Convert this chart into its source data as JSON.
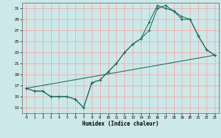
{
  "xlabel": "Humidex (Indice chaleur)",
  "bg_color": "#cce8e8",
  "grid_color": "#ff9999",
  "line_color": "#1a6b5a",
  "xlim": [
    -0.5,
    23.5
  ],
  "ylim": [
    12,
    32
  ],
  "xticks": [
    0,
    1,
    2,
    3,
    4,
    5,
    6,
    7,
    8,
    9,
    10,
    11,
    12,
    13,
    14,
    15,
    16,
    17,
    18,
    19,
    20,
    21,
    22,
    23
  ],
  "yticks": [
    13,
    15,
    17,
    19,
    21,
    23,
    25,
    27,
    29,
    31
  ],
  "line1_x": [
    0,
    1,
    2,
    3,
    4,
    5,
    6,
    7,
    8,
    9,
    10,
    11,
    12,
    13,
    14,
    15,
    16,
    17,
    18,
    19,
    20,
    21,
    22,
    23
  ],
  "line1_y": [
    16.5,
    16.0,
    16.0,
    15.0,
    15.0,
    15.0,
    14.5,
    13.0,
    17.5,
    18.0,
    19.5,
    21.0,
    23.0,
    24.5,
    25.5,
    27.0,
    31.0,
    31.5,
    30.5,
    29.5,
    29.0,
    26.0,
    23.5,
    22.5
  ],
  "line2_x": [
    0,
    1,
    2,
    3,
    4,
    5,
    6,
    7,
    8,
    9,
    10,
    11,
    12,
    13,
    14,
    15,
    16,
    17,
    18,
    19,
    20,
    21,
    22,
    23
  ],
  "line2_y": [
    16.5,
    16.0,
    16.0,
    15.0,
    15.0,
    15.0,
    14.5,
    13.0,
    17.5,
    18.0,
    19.5,
    21.0,
    23.0,
    24.5,
    25.5,
    28.5,
    31.5,
    31.0,
    30.5,
    29.0,
    29.0,
    26.0,
    23.5,
    22.5
  ],
  "line3_x": [
    0,
    23
  ],
  "line3_y": [
    16.5,
    22.5
  ]
}
